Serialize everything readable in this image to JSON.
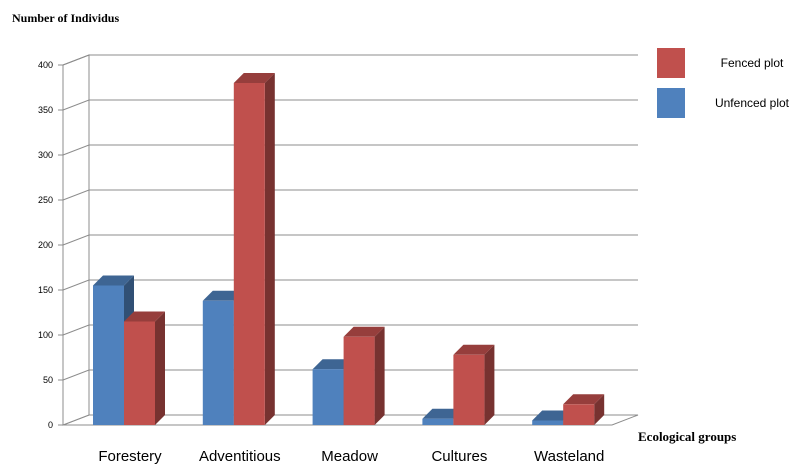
{
  "chart_data": {
    "type": "bar",
    "title": "",
    "ylabel": "Number of Individus",
    "xlabel": "Ecological groups",
    "ylim": [
      0,
      400
    ],
    "yticks": [
      0,
      50,
      100,
      150,
      200,
      250,
      300,
      350,
      400
    ],
    "categories": [
      "Forestery",
      "Adventitious",
      "Meadow",
      "Cultures",
      "Wasteland"
    ],
    "series": [
      {
        "name": "Unfenced plot",
        "color": "#4F81BD",
        "values": [
          155,
          138,
          62,
          7,
          5
        ]
      },
      {
        "name": "Fenced plot",
        "color": "#C0504D",
        "values": [
          115,
          380,
          98,
          78,
          23
        ]
      }
    ],
    "legend": {
      "position": "top-right",
      "order": [
        "Fenced plot",
        "Unfenced plot"
      ]
    },
    "grid": true,
    "style": "3d-column"
  }
}
